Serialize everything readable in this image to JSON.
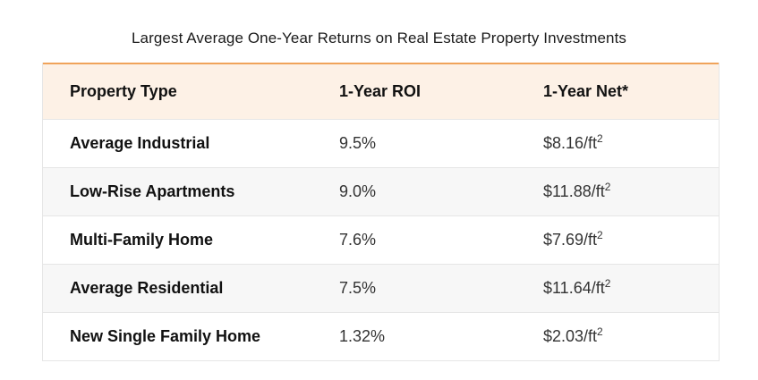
{
  "title": "Largest Average One-Year Returns on Real Estate Property Investments",
  "columns": [
    "Property Type",
    "1-Year ROI",
    "1-Year Net*"
  ],
  "rows": [
    {
      "type": "Average Industrial",
      "roi": "9.5%",
      "net": "$8.16/ft",
      "unit_exp": "2"
    },
    {
      "type": "Low-Rise Apartments",
      "roi": "9.0%",
      "net": "$11.88/ft",
      "unit_exp": "2"
    },
    {
      "type": "Multi-Family Home",
      "roi": "7.6%",
      "net": "$7.69/ft",
      "unit_exp": "2"
    },
    {
      "type": "Average Residential",
      "roi": "7.5%",
      "net": "$11.64/ft",
      "unit_exp": "2"
    },
    {
      "type": "New Single Family Home",
      "roi": "1.32%",
      "net": "$2.03/ft",
      "unit_exp": "2"
    }
  ],
  "colors": {
    "header_bg": "#fdf1e6",
    "header_border": "#f0a35a",
    "row_alt_bg": "#f7f7f7"
  }
}
